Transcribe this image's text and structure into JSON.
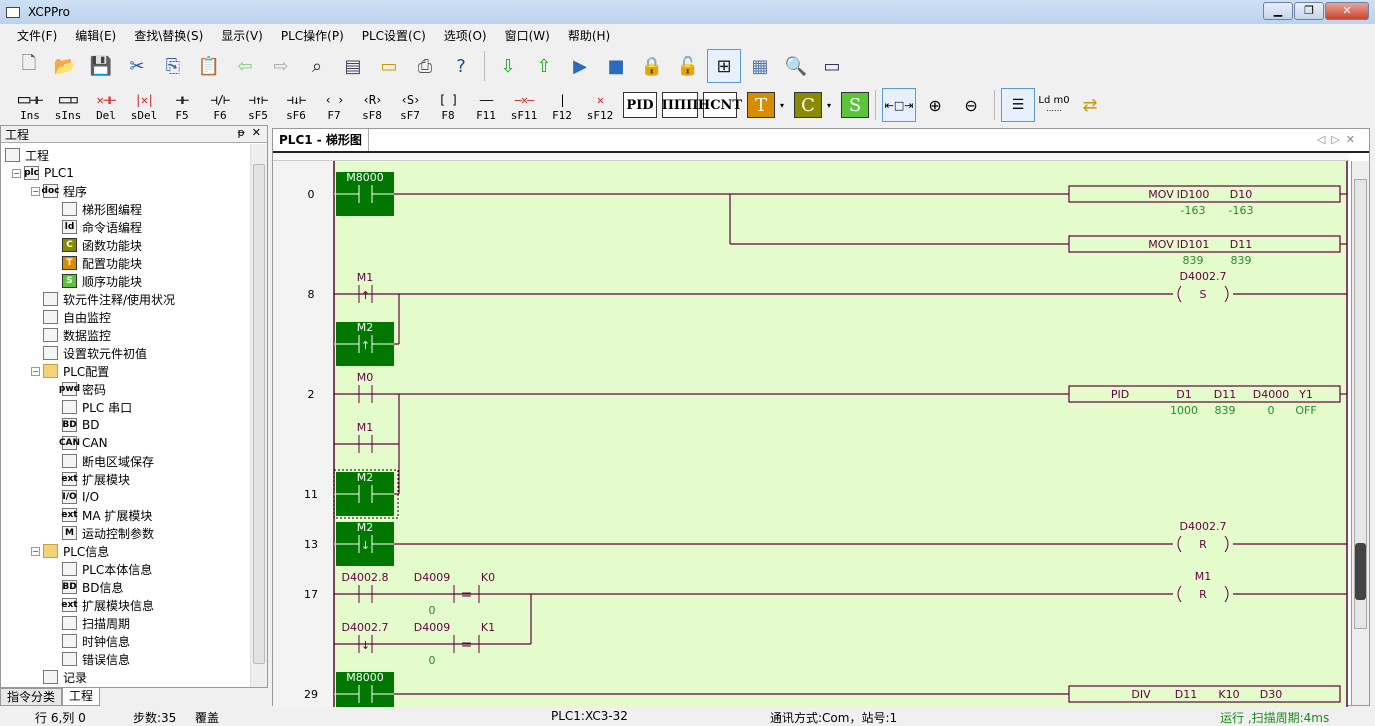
{
  "window": {
    "title": "XCPPro"
  },
  "menu": [
    "文件(F)",
    "编辑(E)",
    "查找\\替换(S)",
    "显示(V)",
    "PLC操作(P)",
    "PLC设置(C)",
    "选项(O)",
    "窗口(W)",
    "帮助(H)"
  ],
  "toolbar1": [
    "new-file",
    "open-folder",
    "save",
    "cut",
    "copy",
    "paste",
    "back",
    "forward",
    "find",
    "monitor",
    "window",
    "print",
    "help",
    "download",
    "upload",
    "run",
    "stop",
    "lock",
    "unlock",
    "ladder-view",
    "data-monitor",
    "free-monitor",
    "serial-port"
  ],
  "toolbar2": {
    "ladder_keys": [
      {
        "glyph": "⊏⊐⊣⊢",
        "label": "Ins"
      },
      {
        "glyph": "⊏⊐⊐",
        "label": "sIns"
      },
      {
        "glyph": "✕⊣⊢",
        "label": "Del"
      },
      {
        "glyph": "|✕|",
        "label": "sDel"
      },
      {
        "glyph": "⊣⊢",
        "label": "F5"
      },
      {
        "glyph": "⊣/⊢",
        "label": "F6"
      },
      {
        "glyph": "⊣↑⊢",
        "label": "sF5"
      },
      {
        "glyph": "⊣↓⊢",
        "label": "sF6"
      },
      {
        "glyph": "‹ ›",
        "label": "F7"
      },
      {
        "glyph": "‹R›",
        "label": "sF8"
      },
      {
        "glyph": "‹S›",
        "label": "sF7"
      },
      {
        "glyph": "[ ]",
        "label": "F8"
      },
      {
        "glyph": "——",
        "label": "F11"
      },
      {
        "glyph": "—✕—",
        "label": "sF11"
      },
      {
        "glyph": "|",
        "label": "F12"
      },
      {
        "glyph": "✕",
        "label": "sF12"
      }
    ],
    "blocks": [
      "PID",
      "ΠΠΠ",
      "HCNT"
    ],
    "fb": [
      {
        "label": "T",
        "color": "#d88c00"
      },
      {
        "label": "C",
        "color": "#8a8a00"
      },
      {
        "label": "S",
        "color": "#5cc43a"
      }
    ],
    "ldm0": "Ld m0"
  },
  "panel": {
    "title": "工程",
    "pin": "ᵽ",
    "close": "✕",
    "tree": [
      {
        "label": "工程",
        "level": 0,
        "icon": "project"
      },
      {
        "label": "PLC1",
        "level": 1,
        "icon": "plc",
        "exp": "−"
      },
      {
        "label": "程序",
        "level": 2,
        "icon": "doc",
        "exp": "−"
      },
      {
        "label": "梯形图编程",
        "level": 3,
        "icon": "ladder"
      },
      {
        "label": "命令语编程",
        "level": 3,
        "icon": "ld"
      },
      {
        "label": "函数功能块",
        "level": 3,
        "icon": "C",
        "color": "#8a8a00"
      },
      {
        "label": "配置功能块",
        "level": 3,
        "icon": "T",
        "color": "#d88c00"
      },
      {
        "label": "顺序功能块",
        "level": 3,
        "icon": "S",
        "color": "#5cc43a"
      },
      {
        "label": "软元件注释/使用状况",
        "level": 2,
        "icon": "list"
      },
      {
        "label": "自由监控",
        "level": 2,
        "icon": "monitor"
      },
      {
        "label": "数据监控",
        "level": 2,
        "icon": "data"
      },
      {
        "label": "设置软元件初值",
        "level": 2,
        "icon": "init"
      },
      {
        "label": "PLC配置",
        "level": 2,
        "icon": "folder",
        "exp": "−"
      },
      {
        "label": "密码",
        "level": 3,
        "icon": "pwd"
      },
      {
        "label": "PLC 串口",
        "level": 3,
        "icon": "port"
      },
      {
        "label": "BD",
        "level": 3,
        "icon": "BD"
      },
      {
        "label": "CAN",
        "level": 3,
        "icon": "CAN"
      },
      {
        "label": "断电区域保存",
        "level": 3,
        "icon": "save"
      },
      {
        "label": "扩展模块",
        "level": 3,
        "icon": "ext"
      },
      {
        "label": "I/O",
        "level": 3,
        "icon": "I/O"
      },
      {
        "label": "MA 扩展模块",
        "level": 3,
        "icon": "ext"
      },
      {
        "label": "运动控制参数",
        "level": 3,
        "icon": "M"
      },
      {
        "label": "PLC信息",
        "level": 2,
        "icon": "folder",
        "exp": "−"
      },
      {
        "label": "PLC本体信息",
        "level": 3,
        "icon": "info"
      },
      {
        "label": "BD信息",
        "level": 3,
        "icon": "BD"
      },
      {
        "label": "扩展模块信息",
        "level": 3,
        "icon": "ext"
      },
      {
        "label": "扫描周期",
        "level": 3,
        "icon": "cycle"
      },
      {
        "label": "时钟信息",
        "level": 3,
        "icon": "clock"
      },
      {
        "label": "错误信息",
        "level": 3,
        "icon": "error"
      },
      {
        "label": "记录",
        "level": 2,
        "icon": "record"
      }
    ],
    "bottom_tabs": [
      "指令分类",
      "工程"
    ]
  },
  "editor": {
    "tab": "PLC1 - 梯形图",
    "steps": [
      {
        "n": "0",
        "row": 0
      },
      {
        "n": "8",
        "row": 2
      },
      {
        "n": "2",
        "row": 4
      },
      {
        "n": "11",
        "row": 6
      },
      {
        "n": "13",
        "row": 7
      },
      {
        "n": "17",
        "row": 8
      },
      {
        "n": "29",
        "row": 10
      }
    ],
    "contacts": [
      {
        "label": "M8000",
        "type": "no",
        "active": true
      },
      {
        "label": "M1",
        "type": "rise",
        "active": false
      },
      {
        "label": "M2",
        "type": "rise",
        "active": true
      },
      {
        "label": "M0",
        "type": "no",
        "active": false
      },
      {
        "label": "M1",
        "type": "no",
        "active": false
      },
      {
        "label": "M2",
        "type": "no",
        "active": true,
        "selected": true
      },
      {
        "label": "M2",
        "type": "fall",
        "active": true
      },
      {
        "label": "D4002.8",
        "type": "no",
        "active": false
      },
      {
        "label": "D4002.7",
        "type": "fall",
        "active": false
      },
      {
        "label": "M8000",
        "type": "no",
        "active": true
      }
    ],
    "compares": [
      {
        "op": "=",
        "a": "D4009",
        "b": "K0",
        "value": "0"
      },
      {
        "op": "=",
        "a": "D4009",
        "b": "K1",
        "value": "0"
      }
    ],
    "boxes": [
      {
        "cmd": "MOV",
        "args": [
          "ID100",
          "D10"
        ],
        "values": [
          "-163",
          "-163"
        ]
      },
      {
        "cmd": "MOV",
        "args": [
          "ID101",
          "D11"
        ],
        "values": [
          "839",
          "839"
        ]
      },
      {
        "cmd": "PID",
        "args": [
          "D1",
          "D11",
          "D4000",
          "Y1"
        ],
        "values": [
          "1000",
          "839",
          "0",
          "OFF"
        ]
      },
      {
        "cmd": "DIV",
        "args": [
          "D11",
          "K10",
          "D30"
        ],
        "values": []
      }
    ],
    "coils": [
      {
        "label": "D4002.7",
        "type": "S"
      },
      {
        "label": "D4002.7",
        "type": "R"
      },
      {
        "label": "M1",
        "type": "R"
      }
    ]
  },
  "colors": {
    "ladder_bg": "#e4fccc",
    "wire": "#660044",
    "active": "#007800",
    "value": "#2a8a2a"
  },
  "status": {
    "pos": "行 6,列 0",
    "steps": "步数:35",
    "mode": "覆盖",
    "plc": "PLC1:XC3-32",
    "comm": "通讯方式:Com，站号:1",
    "run": "运行 ,扫描周期:4ms"
  }
}
